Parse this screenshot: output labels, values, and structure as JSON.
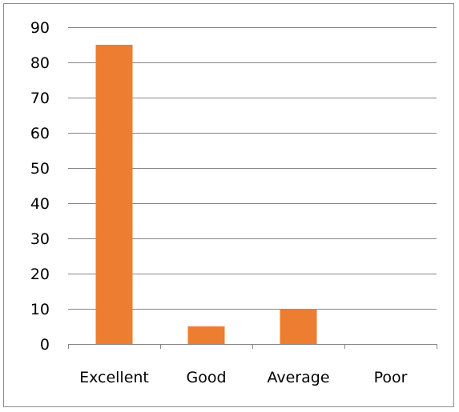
{
  "chart_data": {
    "type": "bar",
    "categories": [
      "Excellent",
      "Good",
      "Average",
      "Poor"
    ],
    "values": [
      85,
      5,
      10,
      0
    ],
    "title": "",
    "xlabel": "",
    "ylabel": "",
    "ylim": [
      0,
      90
    ],
    "yticks": [
      0,
      10,
      20,
      30,
      40,
      50,
      60,
      70,
      80,
      90
    ],
    "grid": true,
    "legend": "none",
    "bar_color": "#ed7d31",
    "grid_color": "#868686",
    "axis_color": "#868686"
  }
}
